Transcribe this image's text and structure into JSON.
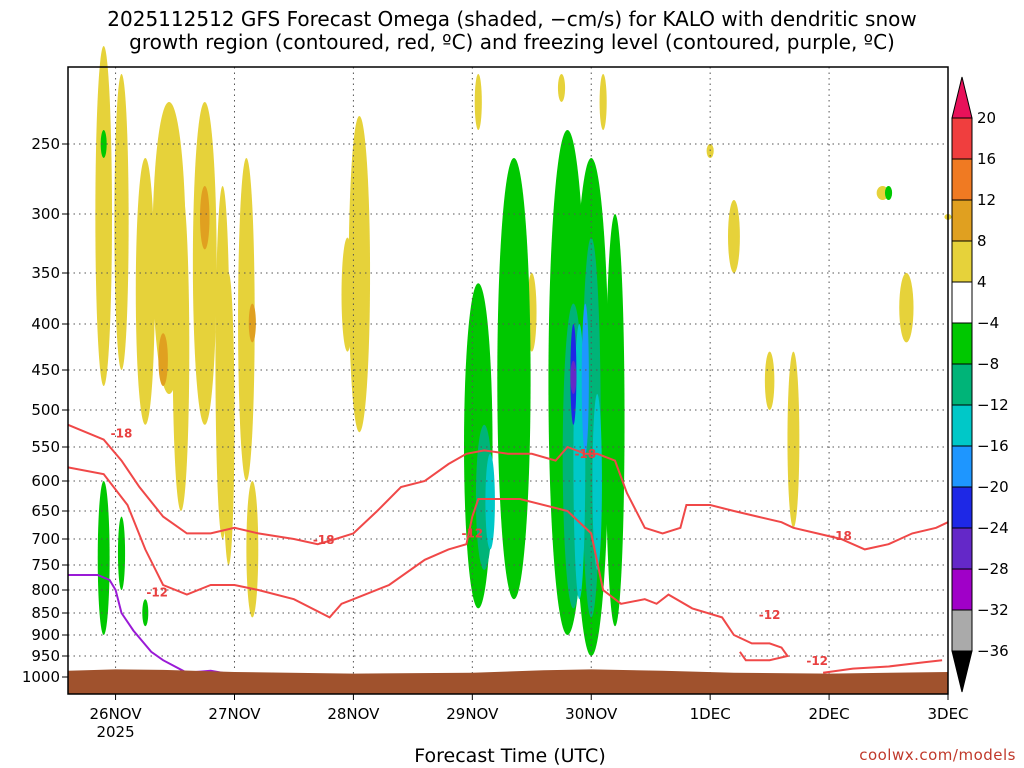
{
  "chart_data": {
    "type": "heatmap",
    "title": "2025112512 GFS Forecast Omega (shaded, −cm/s) for KALO with dendritic snow\ngrowth region (contoured, red, ºC) and freezing level (contoured, purple, ºC)",
    "xlabel": "Forecast Time (UTC)",
    "ylabel": "",
    "credit": "coolwx.com/models",
    "x_ticks": [
      "26NOV",
      "27NOV",
      "28NOV",
      "29NOV",
      "30NOV",
      "1DEC",
      "2DEC",
      "3DEC"
    ],
    "x_year_label": "2025",
    "y_ticks": [
      250,
      300,
      350,
      400,
      450,
      500,
      550,
      600,
      650,
      700,
      750,
      800,
      850,
      900,
      950,
      1000
    ],
    "y_range_hpa": [
      200,
      1050
    ],
    "x_range_days": [
      -0.4,
      7
    ],
    "colorbar": {
      "labels": [
        "20",
        "16",
        "12",
        "8",
        "4",
        "−4",
        "−8",
        "−12",
        "−16",
        "−20",
        "−24",
        "−28",
        "−32",
        "−36"
      ],
      "colors": [
        "#e8115a",
        "#f03e3e",
        "#f07a22",
        "#e0a020",
        "#e6d23a",
        "#ffffff",
        "#00c800",
        "#00b478",
        "#00c8c8",
        "#1e96ff",
        "#1e28e6",
        "#6428c8",
        "#a000c8",
        "#aaaaaa",
        "#000000"
      ]
    },
    "contour_labels": [
      "-18",
      "-18",
      "-18",
      "-18",
      "-12",
      "-12",
      "-12",
      "-12",
      "-18"
    ],
    "series": [
      {
        "name": "-12",
        "color": "#f04848",
        "day": [
          -0.4,
          -0.1,
          0.1,
          0.25,
          0.4,
          0.6,
          0.8,
          1.0,
          1.2,
          1.5,
          1.8,
          1.9,
          2.0,
          2.3,
          2.6,
          2.8,
          2.95,
          3.0,
          3.05,
          3.2,
          3.4,
          3.8,
          4.0,
          4.1,
          4.25,
          4.45,
          4.55,
          4.65,
          4.85,
          5.1,
          5.2,
          5.35,
          5.5,
          5.6,
          5.65,
          5.5,
          5.3,
          5.25
        ],
        "hpa": [
          580,
          590,
          640,
          720,
          790,
          810,
          790,
          790,
          800,
          820,
          860,
          830,
          820,
          790,
          740,
          720,
          710,
          660,
          630,
          630,
          630,
          650,
          690,
          800,
          830,
          820,
          830,
          810,
          840,
          860,
          900,
          920,
          920,
          930,
          950,
          960,
          960,
          940
        ]
      },
      {
        "name": "-18",
        "color": "#f04848",
        "day": [
          -0.4,
          -0.1,
          0.05,
          0.2,
          0.4,
          0.6,
          0.8,
          1.0,
          1.2,
          1.5,
          1.7,
          1.85,
          2.0,
          2.2,
          2.4,
          2.6,
          2.8,
          2.95,
          3.1,
          3.3,
          3.5,
          3.7,
          3.8,
          3.95,
          4.05,
          4.2,
          4.3,
          4.45,
          4.6,
          4.75,
          4.8,
          5.0,
          5.2,
          5.4,
          5.6,
          5.7,
          5.9,
          6.1,
          6.3,
          6.5,
          6.7,
          6.9,
          7.0
        ],
        "hpa": [
          520,
          540,
          570,
          610,
          660,
          690,
          690,
          680,
          690,
          700,
          710,
          700,
          690,
          650,
          610,
          600,
          575,
          560,
          555,
          560,
          560,
          570,
          550,
          560,
          560,
          570,
          620,
          680,
          690,
          680,
          640,
          640,
          650,
          660,
          670,
          680,
          690,
          700,
          720,
          710,
          690,
          680,
          670
        ]
      },
      {
        "name": "-12 (low)",
        "color": "#f04848",
        "day": [
          5.95,
          6.2,
          6.5,
          6.8,
          6.95
        ],
        "hpa": [
          990,
          980,
          975,
          965,
          960
        ]
      },
      {
        "name": "freezing level",
        "color": "#9a1ad6",
        "day": [
          -0.4,
          -0.15,
          -0.05,
          0.0,
          0.05,
          0.15,
          0.3,
          0.4,
          0.6,
          0.8,
          0.9,
          1.0
        ],
        "hpa": [
          770,
          770,
          780,
          800,
          850,
          890,
          940,
          960,
          990,
          985,
          990,
          1000
        ]
      }
    ]
  }
}
